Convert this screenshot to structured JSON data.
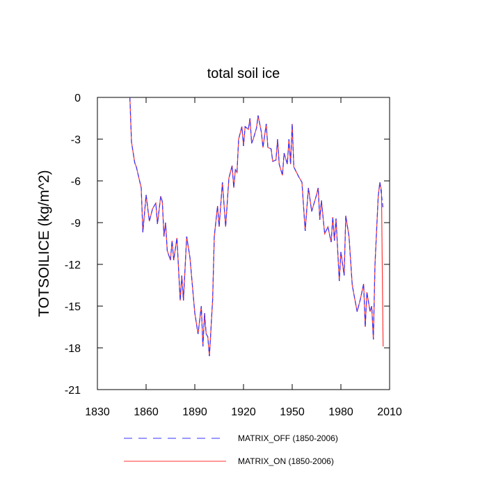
{
  "chart_data": {
    "type": "line",
    "title": "total soil ice",
    "ylabel": "TOTSOILICE  (kg/m^2)",
    "x": [
      1850,
      1851,
      1853,
      1854,
      1857,
      1858,
      1860,
      1862,
      1864,
      1866,
      1867,
      1869,
      1870,
      1871,
      1872,
      1873,
      1875,
      1876,
      1877,
      1879,
      1881,
      1882,
      1883,
      1885,
      1887,
      1890,
      1892,
      1894,
      1895,
      1896,
      1897,
      1898,
      1899,
      1901,
      1902,
      1904,
      1905,
      1907,
      1909,
      1911,
      1913,
      1914,
      1915,
      1916,
      1917,
      1919,
      1920,
      1921,
      1923,
      1924,
      1925,
      1926,
      1928,
      1929,
      1931,
      1932,
      1934,
      1935,
      1937,
      1938,
      1940,
      1941,
      1942,
      1944,
      1945,
      1947,
      1948,
      1949,
      1950,
      1951,
      1954,
      1956,
      1958,
      1959,
      1960,
      1962,
      1965,
      1966,
      1967,
      1968,
      1970,
      1972,
      1974,
      1975,
      1976,
      1977,
      1979,
      1980,
      1982,
      1983,
      1985,
      1987,
      1990,
      1992,
      1994,
      1995,
      1996,
      1998,
      1999,
      2000,
      2001,
      2003,
      2004,
      2005,
      2006
    ],
    "series": [
      {
        "name": "MATRIX_OFF (1850-2006)",
        "color": "#3333ff",
        "line_style": "dashed",
        "values": [
          0,
          -3.2,
          -4.7,
          -5.0,
          -6.5,
          -9.7,
          -7.0,
          -8.9,
          -8.0,
          -7.6,
          -9.1,
          -7.1,
          -7.5,
          -10.0,
          -9.0,
          -11.0,
          -11.7,
          -10.3,
          -11.7,
          -10.1,
          -14.6,
          -12.8,
          -14.6,
          -10.0,
          -11.5,
          -15.5,
          -17.0,
          -15.0,
          -17.9,
          -15.5,
          -17.0,
          -17.2,
          -18.6,
          -14.5,
          -10.0,
          -7.8,
          -9.3,
          -6.1,
          -9.3,
          -5.8,
          -4.9,
          -6.5,
          -5.2,
          -5.4,
          -3.0,
          -2.1,
          -3.5,
          -2.1,
          -2.3,
          -1.5,
          -3.3,
          -3.0,
          -2.2,
          -1.3,
          -2.5,
          -3.6,
          -1.9,
          -3.6,
          -3.7,
          -4.6,
          -4.5,
          -3.0,
          -4.8,
          -5.6,
          -4.0,
          -4.8,
          -3.0,
          -4.8,
          -1.9,
          -5.0,
          -5.7,
          -6.1,
          -9.6,
          -8.0,
          -6.5,
          -8.2,
          -7.0,
          -6.5,
          -8.8,
          -7.4,
          -9.8,
          -9.3,
          -10.4,
          -8.6,
          -10.3,
          -8.7,
          -13.2,
          -11.1,
          -12.8,
          -8.5,
          -10.0,
          -13.5,
          -15.4,
          -14.5,
          -13.4,
          -16.5,
          -14.0,
          -15.4,
          -15.0,
          -17.4,
          -12.0,
          -7.1,
          -6.1,
          -7.0,
          -8.0
        ]
      },
      {
        "name": "MATRIX_ON (1850-2006)",
        "color": "#ff3333",
        "line_style": "solid",
        "values": [
          0,
          -3.2,
          -4.7,
          -5.0,
          -6.5,
          -9.7,
          -7.0,
          -8.9,
          -8.0,
          -7.6,
          -9.1,
          -7.1,
          -7.5,
          -10.0,
          -9.0,
          -11.0,
          -11.7,
          -10.3,
          -11.7,
          -10.1,
          -14.6,
          -12.8,
          -14.6,
          -10.0,
          -11.5,
          -15.5,
          -17.0,
          -15.0,
          -17.9,
          -15.5,
          -17.0,
          -17.2,
          -18.6,
          -14.5,
          -10.0,
          -7.8,
          -9.3,
          -6.1,
          -9.3,
          -5.8,
          -4.9,
          -6.5,
          -5.2,
          -5.4,
          -3.0,
          -2.1,
          -3.5,
          -2.1,
          -2.3,
          -1.5,
          -3.3,
          -3.0,
          -2.2,
          -1.3,
          -2.5,
          -3.6,
          -1.9,
          -3.6,
          -3.7,
          -4.6,
          -4.5,
          -3.0,
          -4.8,
          -5.6,
          -4.0,
          -4.8,
          -3.0,
          -4.8,
          -1.9,
          -5.0,
          -5.7,
          -6.1,
          -9.6,
          -8.0,
          -6.5,
          -8.2,
          -7.0,
          -6.5,
          -8.8,
          -7.4,
          -9.8,
          -9.3,
          -10.4,
          -8.6,
          -10.3,
          -8.7,
          -13.2,
          -11.1,
          -12.8,
          -8.5,
          -10.0,
          -13.5,
          -15.4,
          -14.5,
          -13.4,
          -16.5,
          -14.0,
          -15.4,
          -15.0,
          -17.4,
          -12.0,
          -7.1,
          -6.1,
          -6.7,
          -17.9
        ]
      }
    ],
    "xlim": [
      1830,
      2010
    ],
    "xticks": [
      1830,
      1860,
      1890,
      1920,
      1950,
      1980,
      2010
    ],
    "ylim": [
      -21,
      0
    ],
    "yticks": [
      0,
      -3,
      -6,
      -9,
      -12,
      -15,
      -18,
      -21
    ]
  }
}
